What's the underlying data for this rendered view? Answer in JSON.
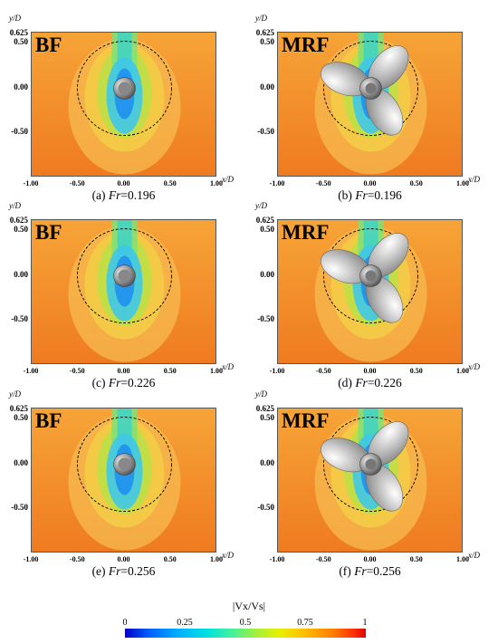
{
  "axes": {
    "y_label": "y/D",
    "x_label": "x/D",
    "y_ticks": [
      "0.625",
      "0.50",
      "0.00",
      "-0.50"
    ],
    "x_ticks": [
      "-1.00",
      "-0.50",
      "0.00",
      "0.50",
      "1.00"
    ]
  },
  "panels": [
    {
      "tag": "BF",
      "caption_prefix": "(a) ",
      "caption_var": "Fr",
      "caption_value": "=0.196",
      "propeller": false
    },
    {
      "tag": "MRF",
      "caption_prefix": "(b) ",
      "caption_var": "Fr",
      "caption_value": "=0.196",
      "propeller": true
    },
    {
      "tag": "BF",
      "caption_prefix": "(c) ",
      "caption_var": "Fr",
      "caption_value": "=0.226",
      "propeller": false
    },
    {
      "tag": "MRF",
      "caption_prefix": "(d) ",
      "caption_var": "Fr",
      "caption_value": "=0.226",
      "propeller": true
    },
    {
      "tag": "BF",
      "caption_prefix": "(e) ",
      "caption_var": "Fr",
      "caption_value": "=0.256",
      "propeller": false
    },
    {
      "tag": "MRF",
      "caption_prefix": "(f) ",
      "caption_var": "Fr",
      "caption_value": "=0.256",
      "propeller": true
    }
  ],
  "colorbar": {
    "title": "|Vx/Vs|",
    "ticks": [
      "0",
      "0.25",
      "0.5",
      "0.75",
      "1"
    ]
  }
}
